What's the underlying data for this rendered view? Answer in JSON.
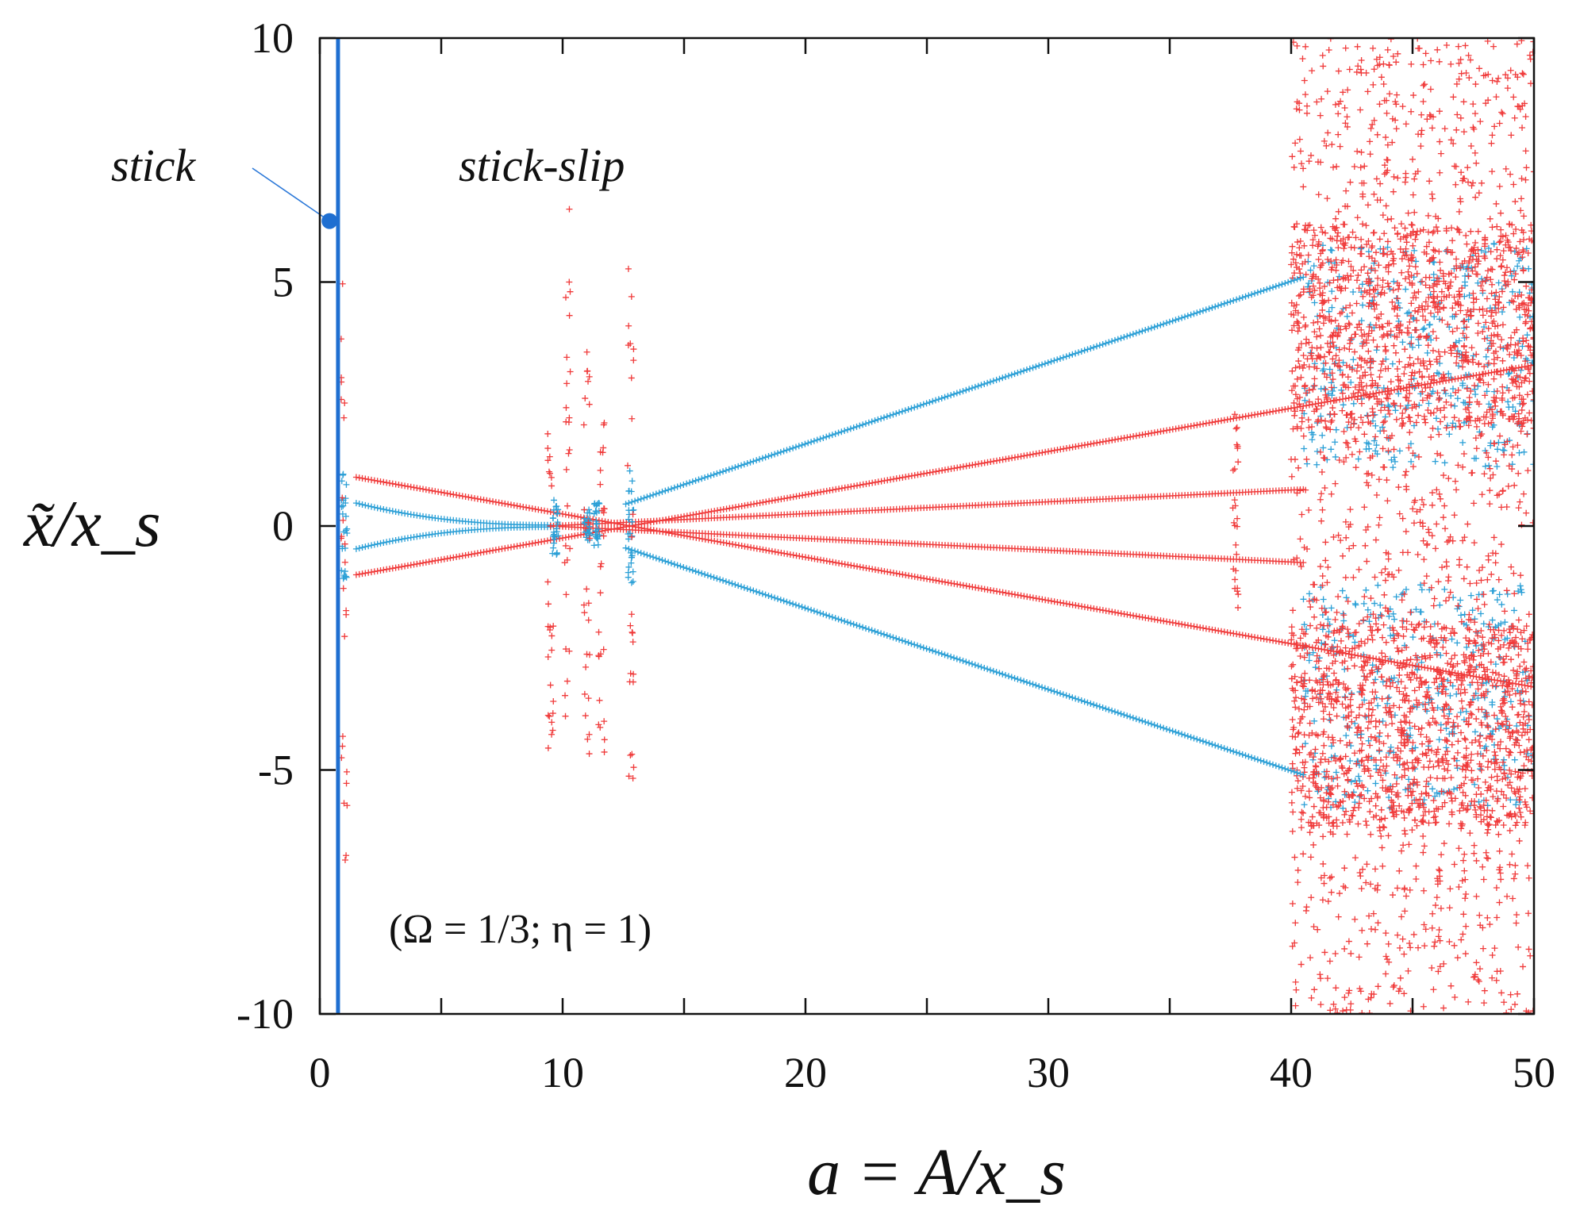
{
  "chart_data": {
    "type": "scatter",
    "title": "",
    "xlabel": "a = A/x_s",
    "ylabel": "x̃/x_s",
    "xlim": [
      0,
      50
    ],
    "ylim": [
      -10,
      10
    ],
    "x_ticks": [
      0,
      10,
      20,
      30,
      40,
      50
    ],
    "y_ticks": [
      -10,
      -5,
      0,
      5,
      10
    ],
    "x_tick_labels": [
      "0",
      "10",
      "20",
      "30",
      "40",
      "50"
    ],
    "y_tick_labels": [
      "-10",
      "-5",
      "0",
      "5",
      "10"
    ],
    "grid": false,
    "annotations": {
      "stick": "stick",
      "stick_slip": "stick-slip",
      "params": "(Ω = 1/3; η = 1)"
    },
    "stick_line": {
      "x": 0.75,
      "color": "#1f6fd1"
    },
    "stick_point": {
      "x": 0.4,
      "y": 6.25
    },
    "series": [
      {
        "name": "blue",
        "color": "#2a9fd6",
        "branches": [
          {
            "x": [
              12.6,
              40.5
            ],
            "y": [
              0.45,
              5.1
            ]
          },
          {
            "x": [
              12.6,
              40.5
            ],
            "y": [
              -0.45,
              -5.1
            ]
          },
          {
            "x": [
              1.5,
              9.5
            ],
            "y": [
              0.45,
              0.02
            ]
          },
          {
            "x": [
              1.5,
              9.5
            ],
            "y": [
              -0.45,
              -0.02
            ]
          }
        ],
        "clusters": [
          {
            "x": 9.7,
            "ymin": -0.6,
            "ymax": 0.6
          },
          {
            "x": 11.0,
            "ymin": -0.3,
            "ymax": 0.4
          },
          {
            "x": 11.4,
            "ymin": -0.4,
            "ymax": 0.5
          },
          {
            "x": 12.8,
            "ymin": -1.2,
            "ymax": 1.2
          },
          {
            "x": 1.0,
            "ymin": -1.1,
            "ymax": 1.1
          }
        ],
        "chaotic_region": {
          "xmin": 40.5,
          "xmax": 50,
          "ymin": -6.5,
          "ymax": 6.5
        }
      },
      {
        "name": "red",
        "color": "#f03a3a",
        "branches": [
          {
            "x": [
              1.5,
              50
            ],
            "y": [
              1.0,
              -3.3
            ]
          },
          {
            "x": [
              1.5,
              50
            ],
            "y": [
              -1.0,
              3.3
            ]
          },
          {
            "x": [
              9.5,
              40.5
            ],
            "y": [
              0.0,
              0.75
            ]
          },
          {
            "x": [
              9.5,
              40.5
            ],
            "y": [
              0.0,
              -0.75
            ]
          }
        ],
        "clusters": [
          {
            "x": 1.0,
            "ymin": -7.0,
            "ymax": 5.0
          },
          {
            "x": 9.5,
            "ymin": -4.7,
            "ymax": 1.9
          },
          {
            "x": 10.2,
            "ymin": -5.0,
            "ymax": 6.5
          },
          {
            "x": 11.0,
            "ymin": -5.0,
            "ymax": 4.5
          },
          {
            "x": 11.6,
            "ymin": -5.2,
            "ymax": 2.2
          },
          {
            "x": 12.8,
            "ymin": -5.2,
            "ymax": 5.5
          },
          {
            "x": 37.7,
            "ymin": -1.8,
            "ymax": 2.5
          }
        ],
        "chaotic_region": {
          "xmin": 40.0,
          "xmax": 50,
          "ymin": -10,
          "ymax": 10
        }
      }
    ]
  }
}
